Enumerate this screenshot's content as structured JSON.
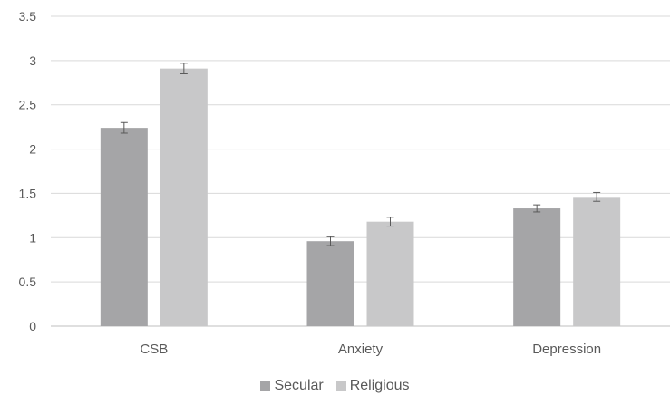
{
  "chart_data": {
    "type": "bar",
    "categories": [
      "CSB",
      "Anxiety",
      "Depression"
    ],
    "series": [
      {
        "name": "Secular",
        "values": [
          2.24,
          0.96,
          1.33
        ],
        "errors": [
          0.06,
          0.05,
          0.04
        ],
        "color": "#a5a5a7"
      },
      {
        "name": "Religious",
        "values": [
          2.91,
          1.18,
          1.46
        ],
        "errors": [
          0.06,
          0.05,
          0.05
        ],
        "color": "#c8c8c9"
      }
    ],
    "ylim": [
      0,
      3.5
    ],
    "yticks": [
      0,
      0.5,
      1,
      1.5,
      2,
      2.5,
      3,
      3.5
    ],
    "ytick_labels": [
      "0",
      "0.5",
      "1",
      "1.5",
      "2",
      "2.5",
      "3",
      "3.5"
    ],
    "grid": true,
    "legend_position": "bottom",
    "title": "",
    "xlabel": "",
    "ylabel": ""
  }
}
